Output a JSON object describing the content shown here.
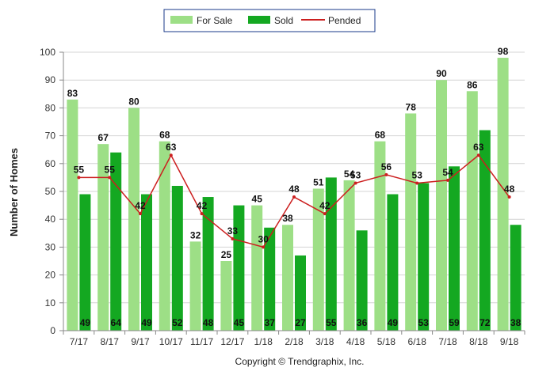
{
  "chart_data": {
    "type": "bar",
    "categories": [
      "7/17",
      "8/17",
      "9/17",
      "10/17",
      "11/17",
      "12/17",
      "1/18",
      "2/18",
      "3/18",
      "4/18",
      "5/18",
      "6/18",
      "7/18",
      "8/18",
      "9/18"
    ],
    "series": [
      {
        "name": "For Sale",
        "type": "bar",
        "color": "#9ddf86",
        "values": [
          83,
          67,
          80,
          68,
          32,
          25,
          45,
          38,
          51,
          54,
          68,
          78,
          90,
          86,
          98
        ]
      },
      {
        "name": "Sold",
        "type": "bar",
        "color": "#14a821",
        "values": [
          49,
          64,
          49,
          52,
          48,
          45,
          37,
          27,
          55,
          36,
          49,
          53,
          59,
          72,
          38
        ]
      },
      {
        "name": "Pended",
        "type": "line",
        "color": "#cc1f1f",
        "values": [
          55,
          55,
          42,
          63,
          42,
          33,
          30,
          48,
          42,
          53,
          56,
          53,
          54,
          63,
          48
        ]
      }
    ],
    "ylabel": "Number of Homes",
    "xlabel": "",
    "ylim": [
      0,
      100
    ],
    "yticks": [
      0,
      10,
      20,
      30,
      40,
      50,
      60,
      70,
      80,
      90,
      100
    ],
    "grid": true,
    "legend_position": "top-center",
    "footer": "Copyright © Trendgraphix, Inc."
  }
}
